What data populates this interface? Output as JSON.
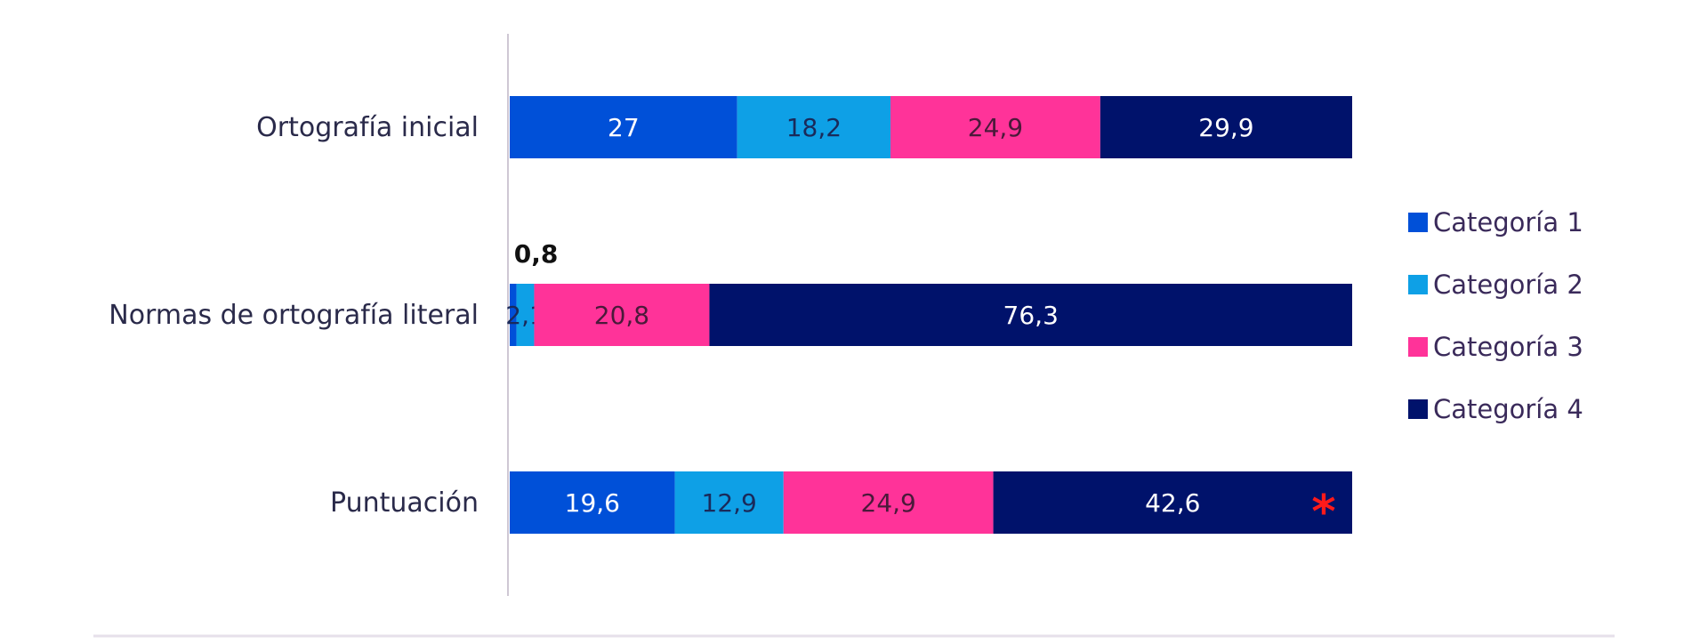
{
  "chart_data": {
    "type": "bar",
    "orientation": "horizontal",
    "stacked": true,
    "categories": [
      "Ortografía inicial",
      "Normas de ortografía literal",
      "Puntuación"
    ],
    "series": [
      {
        "name": "Categoría 1",
        "color": "#0050d8",
        "values": [
          27,
          0.8,
          19.6
        ],
        "label_color": "#ffffff"
      },
      {
        "name": "Categoría 2",
        "color": "#0ea0e6",
        "values": [
          18.2,
          2.1,
          12.9
        ],
        "label_color": "#1a2a5a"
      },
      {
        "name": "Categoría 3",
        "color": "#ff3399",
        "values": [
          24.9,
          20.8,
          24.9
        ],
        "label_color": "#4a1a3a"
      },
      {
        "name": "Categoría 4",
        "color": "#00126b",
        "values": [
          29.9,
          76.3,
          42.6
        ],
        "label_color": "#ffffff"
      }
    ],
    "data_labels": [
      [
        "27",
        "18,2",
        "24,9",
        "29,9"
      ],
      [
        "0,8",
        "2,1",
        "20,8",
        "76,3"
      ],
      [
        "19,6",
        "12,9",
        "24,9",
        "42,6"
      ]
    ],
    "outside_labels": [
      {
        "category_index": 1,
        "series_index": 0,
        "text": "0,8"
      }
    ],
    "annotations": [
      {
        "category_index": 2,
        "series_index": 3,
        "text": "*",
        "color": "#ff1a1a",
        "position": "end"
      }
    ],
    "xlim": [
      0,
      100
    ],
    "grid": false,
    "legend_position": "right",
    "title": "",
    "xlabel": "",
    "ylabel": ""
  }
}
